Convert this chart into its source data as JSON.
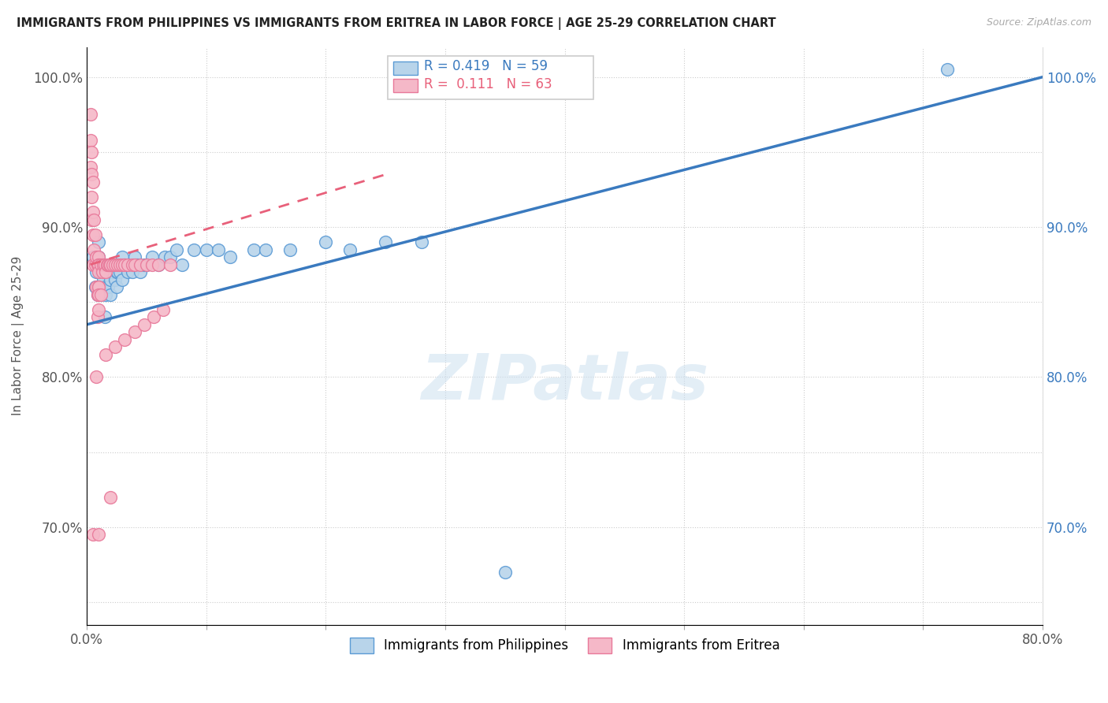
{
  "title": "IMMIGRANTS FROM PHILIPPINES VS IMMIGRANTS FROM ERITREA IN LABOR FORCE | AGE 25-29 CORRELATION CHART",
  "source": "Source: ZipAtlas.com",
  "ylabel": "In Labor Force | Age 25-29",
  "xlim": [
    0.0,
    0.8
  ],
  "ylim": [
    0.635,
    1.02
  ],
  "xticks": [
    0.0,
    0.1,
    0.2,
    0.3,
    0.4,
    0.5,
    0.6,
    0.7,
    0.8
  ],
  "xticklabels": [
    "0.0%",
    "",
    "",
    "",
    "",
    "",
    "",
    "",
    "80.0%"
  ],
  "yticks": [
    0.65,
    0.7,
    0.75,
    0.8,
    0.85,
    0.9,
    0.95,
    1.0
  ],
  "yticklabels_left": [
    "",
    "70.0%",
    "",
    "80.0%",
    "",
    "90.0%",
    "",
    "100.0%"
  ],
  "yticklabels_right": [
    "",
    "70.0%",
    "",
    "80.0%",
    "",
    "90.0%",
    "",
    "100.0%"
  ],
  "legend_blue_label": "Immigrants from Philippines",
  "legend_pink_label": "Immigrants from Eritrea",
  "R_blue": "0.419",
  "N_blue": "59",
  "R_pink": "0.111",
  "N_pink": "63",
  "blue_color": "#b8d4ea",
  "pink_color": "#f5b8c8",
  "blue_edge_color": "#5b9bd5",
  "pink_edge_color": "#e8799a",
  "blue_line_color": "#3a7abf",
  "pink_line_color": "#e8607a",
  "watermark": "ZIPatlas",
  "blue_x": [
    0.005,
    0.007,
    0.008,
    0.009,
    0.01,
    0.01,
    0.01,
    0.01,
    0.012,
    0.012,
    0.014,
    0.015,
    0.015,
    0.016,
    0.017,
    0.018,
    0.019,
    0.02,
    0.02,
    0.021,
    0.022,
    0.023,
    0.024,
    0.025,
    0.025,
    0.026,
    0.027,
    0.028,
    0.03,
    0.03,
    0.032,
    0.034,
    0.036,
    0.038,
    0.04,
    0.04,
    0.042,
    0.045,
    0.048,
    0.05,
    0.055,
    0.06,
    0.065,
    0.07,
    0.075,
    0.08,
    0.09,
    0.1,
    0.11,
    0.12,
    0.14,
    0.15,
    0.17,
    0.2,
    0.22,
    0.25,
    0.28,
    0.35,
    0.72
  ],
  "blue_y": [
    0.88,
    0.86,
    0.87,
    0.855,
    0.86,
    0.875,
    0.88,
    0.89,
    0.855,
    0.87,
    0.865,
    0.84,
    0.86,
    0.855,
    0.87,
    0.86,
    0.875,
    0.855,
    0.865,
    0.87,
    0.87,
    0.875,
    0.865,
    0.87,
    0.86,
    0.87,
    0.875,
    0.87,
    0.865,
    0.88,
    0.875,
    0.87,
    0.875,
    0.87,
    0.875,
    0.88,
    0.875,
    0.87,
    0.875,
    0.875,
    0.88,
    0.875,
    0.88,
    0.88,
    0.885,
    0.875,
    0.885,
    0.885,
    0.885,
    0.88,
    0.885,
    0.885,
    0.885,
    0.89,
    0.885,
    0.89,
    0.89,
    0.67,
    1.005
  ],
  "pink_x": [
    0.003,
    0.003,
    0.003,
    0.004,
    0.004,
    0.004,
    0.004,
    0.005,
    0.005,
    0.005,
    0.005,
    0.006,
    0.006,
    0.007,
    0.007,
    0.008,
    0.008,
    0.009,
    0.009,
    0.009,
    0.01,
    0.01,
    0.01,
    0.01,
    0.01,
    0.01,
    0.01,
    0.01,
    0.012,
    0.012,
    0.013,
    0.014,
    0.015,
    0.016,
    0.017,
    0.018,
    0.019,
    0.02,
    0.022,
    0.024,
    0.026,
    0.028,
    0.03,
    0.032,
    0.034,
    0.038,
    0.04,
    0.045,
    0.05,
    0.055,
    0.06,
    0.07,
    0.008,
    0.016,
    0.024,
    0.032,
    0.04,
    0.048,
    0.056,
    0.064,
    0.005,
    0.01,
    0.02
  ],
  "pink_y": [
    0.975,
    0.958,
    0.94,
    0.95,
    0.935,
    0.92,
    0.905,
    0.93,
    0.91,
    0.895,
    0.875,
    0.905,
    0.885,
    0.895,
    0.875,
    0.88,
    0.86,
    0.875,
    0.855,
    0.84,
    0.88,
    0.86,
    0.875,
    0.86,
    0.855,
    0.845,
    0.875,
    0.87,
    0.875,
    0.855,
    0.87,
    0.875,
    0.875,
    0.87,
    0.875,
    0.875,
    0.875,
    0.875,
    0.875,
    0.875,
    0.875,
    0.875,
    0.875,
    0.875,
    0.875,
    0.875,
    0.875,
    0.875,
    0.875,
    0.875,
    0.875,
    0.875,
    0.8,
    0.815,
    0.82,
    0.825,
    0.83,
    0.835,
    0.84,
    0.845,
    0.695,
    0.695,
    0.72
  ]
}
